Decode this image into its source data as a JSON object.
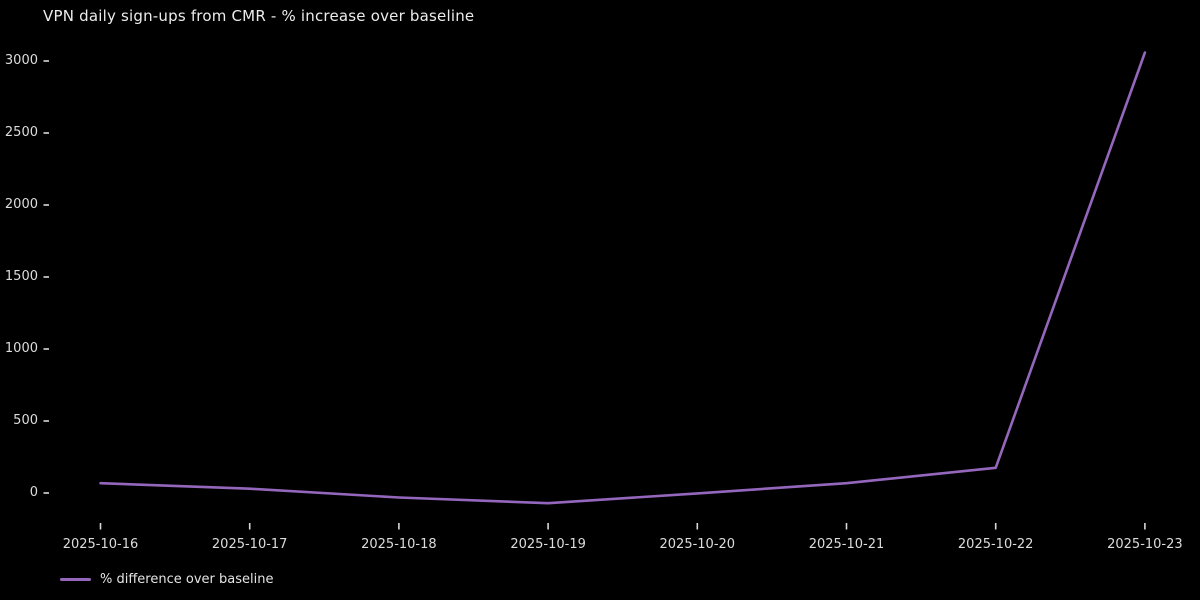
{
  "title": "VPN daily sign-ups from CMR - % increase over baseline",
  "legend": {
    "label": "% difference over baseline",
    "position": "lower-left"
  },
  "colors": {
    "background": "#000000",
    "title_text": "#ececec",
    "tick_text": "#dcdcdc",
    "tick_mark": "#d8d8d8",
    "line": "#9467bd"
  },
  "chart_data": {
    "type": "line",
    "title": "VPN daily sign-ups from CMR - % increase over baseline",
    "x": [
      "2025-10-16",
      "2025-10-17",
      "2025-10-18",
      "2025-10-19",
      "2025-10-20",
      "2025-10-21",
      "2025-10-22",
      "2025-10-23"
    ],
    "series": [
      {
        "name": "% difference over baseline",
        "values": [
          68,
          30,
          -31,
          -71,
          -3,
          68,
          175,
          3058
        ]
      }
    ],
    "xlabel": "",
    "ylabel": "",
    "yticks": [
      0,
      500,
      1000,
      1500,
      2000,
      2500,
      3000
    ],
    "ylim": [
      -210,
      3160
    ],
    "grid": false,
    "legend_position": "lower left"
  }
}
